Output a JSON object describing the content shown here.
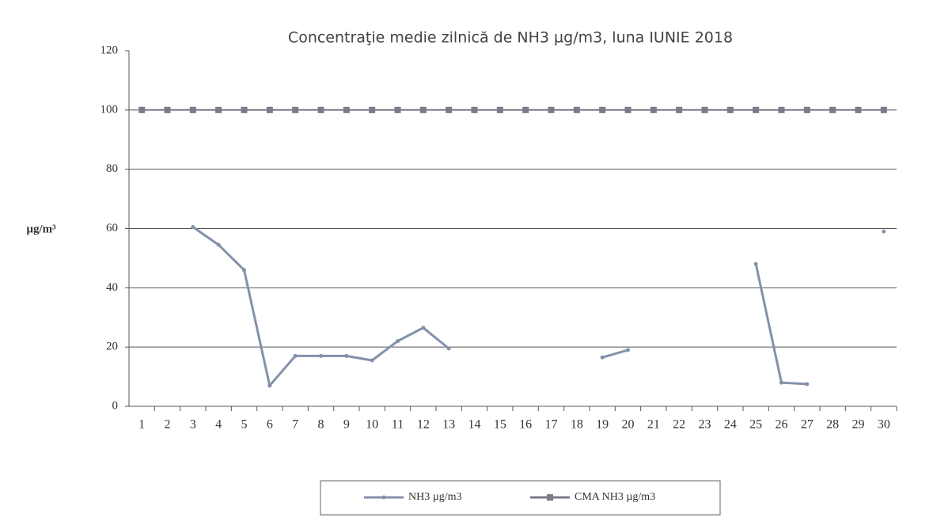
{
  "chart_data": {
    "type": "line",
    "title": "Concentraţie medie zilnică de NH3 µg/m3, luna IUNIE 2018",
    "y_label": "µg/m³",
    "categories": [
      "1",
      "2",
      "3",
      "4",
      "5",
      "6",
      "7",
      "8",
      "9",
      "10",
      "11",
      "12",
      "13",
      "14",
      "15",
      "16",
      "17",
      "18",
      "19",
      "20",
      "21",
      "22",
      "23",
      "24",
      "25",
      "26",
      "27",
      "28",
      "29",
      "30"
    ],
    "series": [
      {
        "name": "NH3 µg/m3",
        "color": "#8391aa",
        "marker": "circle",
        "values": [
          null,
          null,
          60.5,
          54.5,
          46,
          7,
          17,
          17,
          17,
          15.5,
          22,
          26.5,
          19.5,
          null,
          null,
          null,
          null,
          null,
          16.5,
          19,
          null,
          null,
          null,
          null,
          48,
          8,
          7.5,
          null,
          null,
          59
        ]
      },
      {
        "name": "CMA NH3 µg/m3",
        "color": "#7b7b8c",
        "marker": "square",
        "values": [
          100,
          100,
          100,
          100,
          100,
          100,
          100,
          100,
          100,
          100,
          100,
          100,
          100,
          100,
          100,
          100,
          100,
          100,
          100,
          100,
          100,
          100,
          100,
          100,
          100,
          100,
          100,
          100,
          100,
          100
        ]
      }
    ],
    "ylim": [
      0,
      120
    ],
    "yticks": [
      0,
      20,
      40,
      60,
      80,
      100,
      120
    ],
    "grid": true,
    "legend": "bottom"
  }
}
